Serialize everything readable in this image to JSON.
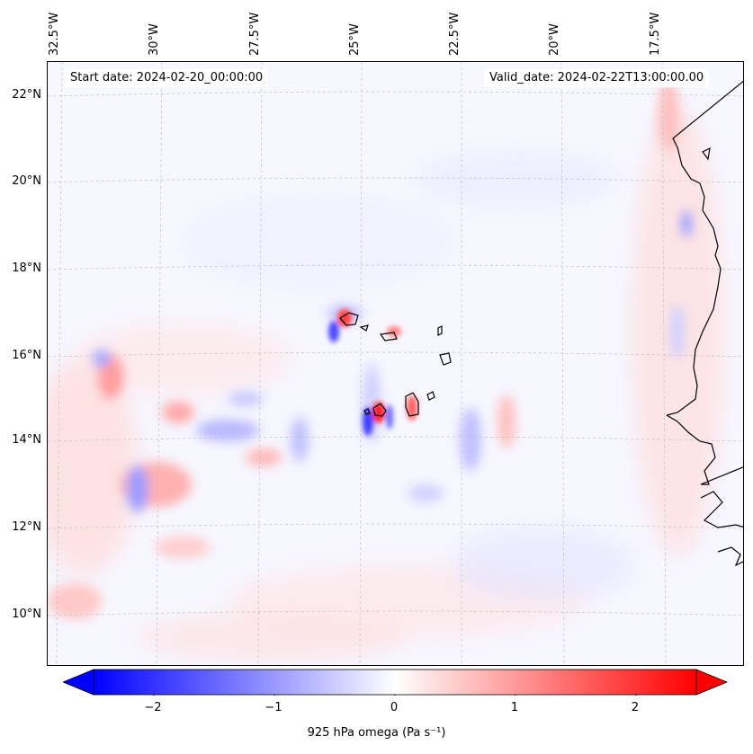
{
  "header": {
    "start_date": "Start date: 2024-02-20_00:00:00",
    "valid_date": "Valid_date: 2024-02-22T13:00:00.00"
  },
  "axes": {
    "lon_labels": [
      "32.5°W",
      "30°W",
      "27.5°W",
      "25°W",
      "22.5°W",
      "20°W",
      "17.5°W"
    ],
    "lat_labels": [
      "22°N",
      "20°N",
      "18°N",
      "16°N",
      "14°N",
      "12°N",
      "10°N"
    ]
  },
  "colorbar": {
    "ticks": [
      "−2",
      "−1",
      "0",
      "1",
      "2"
    ],
    "tick_values": [
      -2,
      -1,
      0,
      1,
      2
    ],
    "range": [
      -2.5,
      2.5
    ],
    "label": "925 hPa omega (Pa s⁻¹)",
    "colormap": "bwr",
    "neg_color": "#0000ff",
    "mid_color": "#ffffff",
    "pos_color": "#ff0000"
  },
  "map": {
    "coastline_color": "#000000",
    "gridline_color": "#c0c0c0"
  }
}
